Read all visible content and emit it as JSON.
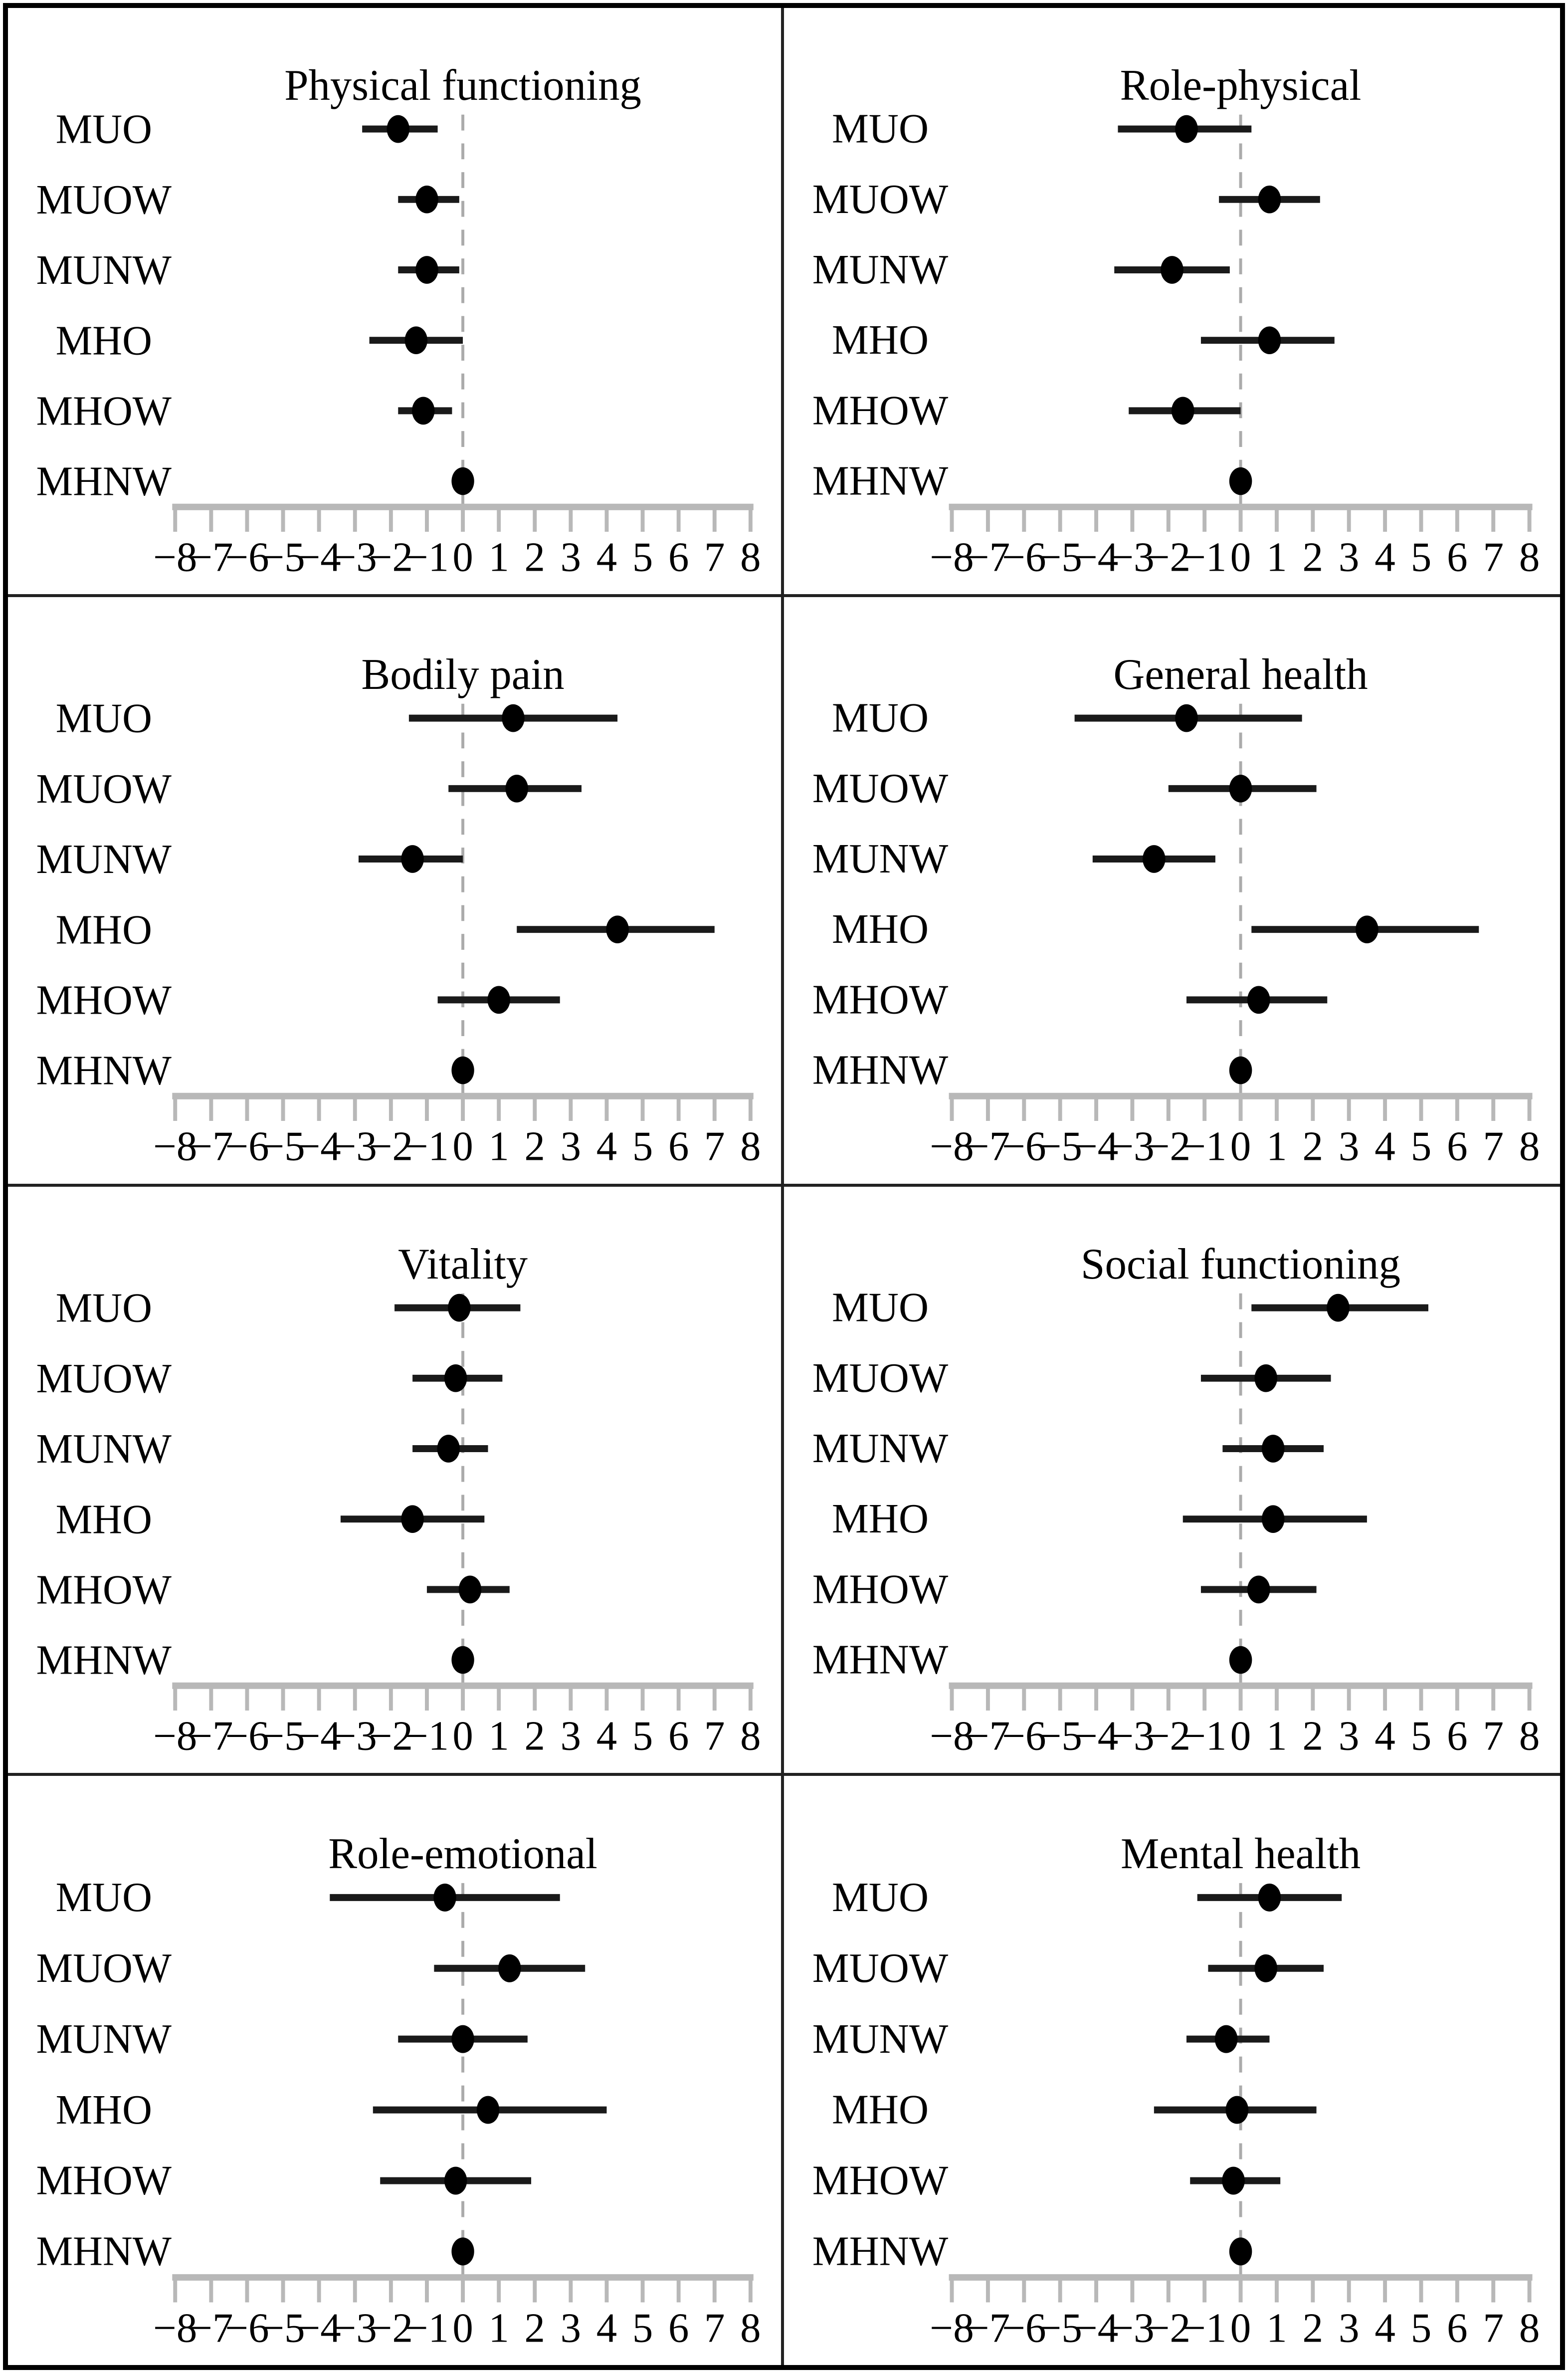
{
  "figure": {
    "description": "Forest plots of SF-36 domain score differences with 95% confidence intervals across metabolic/weight phenotype groups",
    "reference_group": "MHNW"
  },
  "style": {
    "point_color": "#000000",
    "ci_color": "#1a1a1a",
    "axis_color": "#b8b8b8",
    "dash_color": "#ababab",
    "grid_line_color": "#222222"
  },
  "axis": {
    "xlim": [
      -8,
      8
    ],
    "x_ticks": [
      -8,
      -7,
      -6,
      -5,
      -4,
      -3,
      -2,
      -1,
      0,
      1,
      2,
      3,
      4,
      5,
      6,
      7,
      8
    ],
    "x_tick_labels": [
      "−8",
      "−7",
      "−6",
      "−5",
      "−4",
      "−3",
      "−2",
      "−1",
      "0",
      "1",
      "2",
      "3",
      "4",
      "5",
      "6",
      "7",
      "8"
    ],
    "reference_line_x": 0,
    "grid": false
  },
  "chart_data": [
    {
      "type": "scatter",
      "subtype": "forest-dot-ci",
      "title": "Physical functioning",
      "categories": [
        "MUO",
        "MUOW",
        "MUNW",
        "MHO",
        "MHOW",
        "MHNW"
      ],
      "rows": [
        {
          "label": "MUO",
          "est": -1.8,
          "lo": -2.8,
          "hi": -0.7
        },
        {
          "label": "MUOW",
          "est": -1.0,
          "lo": -1.8,
          "hi": -0.1
        },
        {
          "label": "MUNW",
          "est": -1.0,
          "lo": -1.8,
          "hi": -0.1
        },
        {
          "label": "MHO",
          "est": -1.3,
          "lo": -2.6,
          "hi": 0.0
        },
        {
          "label": "MHOW",
          "est": -1.1,
          "lo": -1.8,
          "hi": -0.3
        },
        {
          "label": "MHNW",
          "est": 0.0,
          "lo": 0.0,
          "hi": 0.0
        }
      ]
    },
    {
      "type": "scatter",
      "subtype": "forest-dot-ci",
      "title": "Role-physical",
      "categories": [
        "MUO",
        "MUOW",
        "MUNW",
        "MHO",
        "MHOW",
        "MHNW"
      ],
      "rows": [
        {
          "label": "MUO",
          "est": -1.5,
          "lo": -3.4,
          "hi": 0.3
        },
        {
          "label": "MUOW",
          "est": 0.8,
          "lo": -0.6,
          "hi": 2.2
        },
        {
          "label": "MUNW",
          "est": -1.9,
          "lo": -3.5,
          "hi": -0.3
        },
        {
          "label": "MHO",
          "est": 0.8,
          "lo": -1.1,
          "hi": 2.6
        },
        {
          "label": "MHOW",
          "est": -1.6,
          "lo": -3.1,
          "hi": 0.0
        },
        {
          "label": "MHNW",
          "est": 0.0,
          "lo": 0.0,
          "hi": 0.0
        }
      ]
    },
    {
      "type": "scatter",
      "subtype": "forest-dot-ci",
      "title": "Bodily pain",
      "categories": [
        "MUO",
        "MUOW",
        "MUNW",
        "MHO",
        "MHOW",
        "MHNW"
      ],
      "rows": [
        {
          "label": "MUO",
          "est": 1.4,
          "lo": -1.5,
          "hi": 4.3
        },
        {
          "label": "MUOW",
          "est": 1.5,
          "lo": -0.4,
          "hi": 3.3
        },
        {
          "label": "MUNW",
          "est": -1.4,
          "lo": -2.9,
          "hi": 0.0
        },
        {
          "label": "MHO",
          "est": 4.3,
          "lo": 1.5,
          "hi": 7.0
        },
        {
          "label": "MHOW",
          "est": 1.0,
          "lo": -0.7,
          "hi": 2.7
        },
        {
          "label": "MHNW",
          "est": 0.0,
          "lo": 0.0,
          "hi": 0.0
        }
      ]
    },
    {
      "type": "scatter",
      "subtype": "forest-dot-ci",
      "title": "General health",
      "categories": [
        "MUO",
        "MUOW",
        "MUNW",
        "MHO",
        "MHOW",
        "MHNW"
      ],
      "rows": [
        {
          "label": "MUO",
          "est": -1.5,
          "lo": -4.6,
          "hi": 1.7
        },
        {
          "label": "MUOW",
          "est": 0.0,
          "lo": -2.0,
          "hi": 2.1
        },
        {
          "label": "MUNW",
          "est": -2.4,
          "lo": -4.1,
          "hi": -0.7
        },
        {
          "label": "MHO",
          "est": 3.5,
          "lo": 0.3,
          "hi": 6.6
        },
        {
          "label": "MHOW",
          "est": 0.5,
          "lo": -1.5,
          "hi": 2.4
        },
        {
          "label": "MHNW",
          "est": 0.0,
          "lo": 0.0,
          "hi": 0.0
        }
      ]
    },
    {
      "type": "scatter",
      "subtype": "forest-dot-ci",
      "title": "Vitality",
      "categories": [
        "MUO",
        "MUOW",
        "MUNW",
        "MHO",
        "MHOW",
        "MHNW"
      ],
      "rows": [
        {
          "label": "MUO",
          "est": -0.1,
          "lo": -1.9,
          "hi": 1.6
        },
        {
          "label": "MUOW",
          "est": -0.2,
          "lo": -1.4,
          "hi": 1.1
        },
        {
          "label": "MUNW",
          "est": -0.4,
          "lo": -1.4,
          "hi": 0.7
        },
        {
          "label": "MHO",
          "est": -1.4,
          "lo": -3.4,
          "hi": 0.6
        },
        {
          "label": "MHOW",
          "est": 0.2,
          "lo": -1.0,
          "hi": 1.3
        },
        {
          "label": "MHNW",
          "est": 0.0,
          "lo": 0.0,
          "hi": 0.0
        }
      ]
    },
    {
      "type": "scatter",
      "subtype": "forest-dot-ci",
      "title": "Social functioning",
      "categories": [
        "MUO",
        "MUOW",
        "MUNW",
        "MHO",
        "MHOW",
        "MHNW"
      ],
      "rows": [
        {
          "label": "MUO",
          "est": 2.7,
          "lo": 0.3,
          "hi": 5.2
        },
        {
          "label": "MUOW",
          "est": 0.7,
          "lo": -1.1,
          "hi": 2.5
        },
        {
          "label": "MUNW",
          "est": 0.9,
          "lo": -0.5,
          "hi": 2.3
        },
        {
          "label": "MHO",
          "est": 0.9,
          "lo": -1.6,
          "hi": 3.5
        },
        {
          "label": "MHOW",
          "est": 0.5,
          "lo": -1.1,
          "hi": 2.1
        },
        {
          "label": "MHNW",
          "est": 0.0,
          "lo": 0.0,
          "hi": 0.0
        }
      ]
    },
    {
      "type": "scatter",
      "subtype": "forest-dot-ci",
      "title": "Role-emotional",
      "categories": [
        "MUO",
        "MUOW",
        "MUNW",
        "MHO",
        "MHOW",
        "MHNW"
      ],
      "rows": [
        {
          "label": "MUO",
          "est": -0.5,
          "lo": -3.7,
          "hi": 2.7
        },
        {
          "label": "MUOW",
          "est": 1.3,
          "lo": -0.8,
          "hi": 3.4
        },
        {
          "label": "MUNW",
          "est": 0.0,
          "lo": -1.8,
          "hi": 1.8
        },
        {
          "label": "MHO",
          "est": 0.7,
          "lo": -2.5,
          "hi": 4.0
        },
        {
          "label": "MHOW",
          "est": -0.2,
          "lo": -2.3,
          "hi": 1.9
        },
        {
          "label": "MHNW",
          "est": 0.0,
          "lo": 0.0,
          "hi": 0.0
        }
      ]
    },
    {
      "type": "scatter",
      "subtype": "forest-dot-ci",
      "title": "Mental health",
      "categories": [
        "MUO",
        "MUOW",
        "MUNW",
        "MHO",
        "MHOW",
        "MHNW"
      ],
      "rows": [
        {
          "label": "MUO",
          "est": 0.8,
          "lo": -1.2,
          "hi": 2.8
        },
        {
          "label": "MUOW",
          "est": 0.7,
          "lo": -0.9,
          "hi": 2.3
        },
        {
          "label": "MUNW",
          "est": -0.4,
          "lo": -1.5,
          "hi": 0.8
        },
        {
          "label": "MHO",
          "est": -0.1,
          "lo": -2.4,
          "hi": 2.1
        },
        {
          "label": "MHOW",
          "est": -0.2,
          "lo": -1.4,
          "hi": 1.1
        },
        {
          "label": "MHNW",
          "est": 0.0,
          "lo": 0.0,
          "hi": 0.0
        }
      ]
    }
  ]
}
